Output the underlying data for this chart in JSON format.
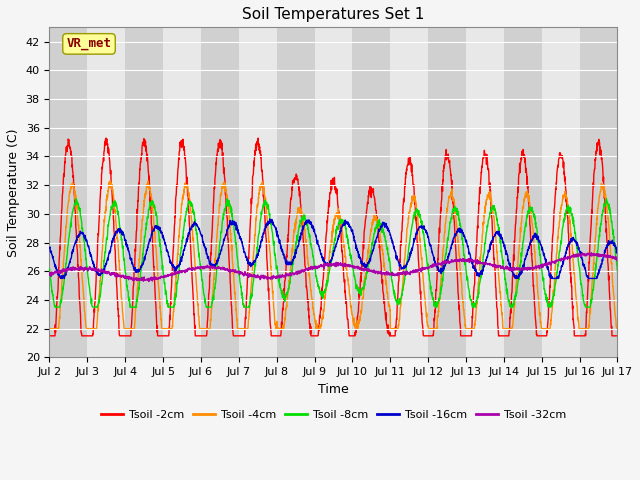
{
  "title": "Soil Temperatures Set 1",
  "xlabel": "Time",
  "ylabel": "Soil Temperature (C)",
  "ylim": [
    20,
    43
  ],
  "yticks": [
    20,
    22,
    24,
    26,
    28,
    30,
    32,
    34,
    36,
    38,
    40,
    42
  ],
  "xtick_labels": [
    "Jul 2",
    "Jul 3",
    "Jul 4",
    "Jul 5",
    "Jul 6",
    "Jul 7",
    "Jul 8",
    "Jul 9",
    "Jul 10",
    "Jul 11",
    "Jul 12",
    "Jul 13",
    "Jul 14",
    "Jul 15",
    "Jul 16",
    "Jul 17"
  ],
  "colors": {
    "Tsoil -2cm": "#ff0000",
    "Tsoil -4cm": "#ff8c00",
    "Tsoil -8cm": "#00dd00",
    "Tsoil -16cm": "#0000cc",
    "Tsoil -32cm": "#aa00aa"
  },
  "annotation_text": "VR_met",
  "annotation_color": "#8b0000",
  "annotation_bg": "#ffff99",
  "plot_bg_color": "#e8e8e8",
  "stripe_color": "#d0d0d0",
  "grid_color": "#ffffff",
  "n_days": 15,
  "points_per_day": 144,
  "title_fontsize": 11,
  "label_fontsize": 9,
  "tick_fontsize": 8,
  "legend_fontsize": 8
}
